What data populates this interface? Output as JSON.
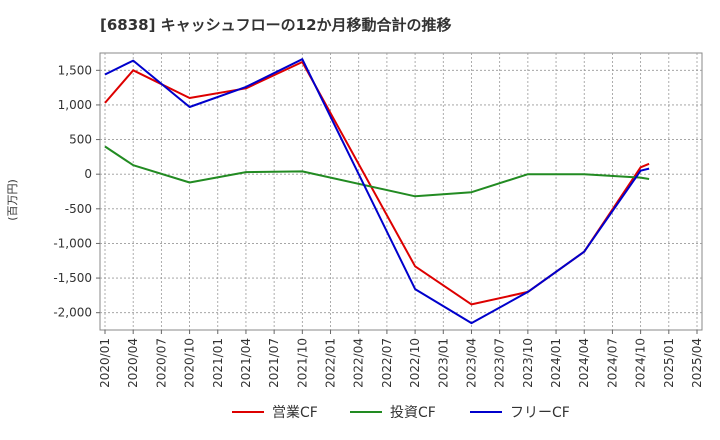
{
  "chart_data": {
    "type": "line",
    "title": "[6838]  キャッシュフローの12か月移動合計の推移",
    "ylabel": "(百万円)",
    "xlabel": "",
    "x": [
      "2020/01",
      "2020/04",
      "2020/07",
      "2020/10",
      "2021/01",
      "2021/04",
      "2021/07",
      "2021/10",
      "2022/01",
      "2022/04",
      "2022/07",
      "2022/10",
      "2023/01",
      "2023/04",
      "2023/07",
      "2023/10",
      "2024/01",
      "2024/04",
      "2024/07",
      "2024/10",
      "2025/01",
      "2025/04"
    ],
    "ylim": [
      -2250,
      1750
    ],
    "yticks": [
      -2000,
      -1500,
      -1000,
      -500,
      0,
      500,
      1000,
      1500
    ],
    "ytick_labels": [
      "-2,000",
      "-1,500",
      "-1,000",
      "-500",
      "0",
      "500",
      "1,000",
      "1,500"
    ],
    "grid": true,
    "legend_position": "bottom",
    "series": [
      {
        "name": "営業CF",
        "color": "#dd0000",
        "values": [
          1030,
          1500,
          null,
          1100,
          null,
          1240,
          null,
          1620,
          null,
          null,
          null,
          -1330,
          null,
          -1880,
          null,
          -1700,
          null,
          -1120,
          null,
          100,
          null,
          null
        ],
        "last_x": 19.3,
        "last_y": 150
      },
      {
        "name": "投資CF",
        "color": "#228b22",
        "values": [
          400,
          130,
          null,
          -120,
          null,
          30,
          null,
          40,
          null,
          null,
          null,
          -320,
          null,
          -260,
          null,
          0,
          null,
          0,
          null,
          -50,
          null,
          null
        ],
        "last_x": 19.3,
        "last_y": -70
      },
      {
        "name": "フリーCF",
        "color": "#0000cc",
        "values": [
          1440,
          1640,
          null,
          970,
          null,
          1260,
          null,
          1660,
          null,
          null,
          null,
          -1660,
          null,
          -2150,
          null,
          -1700,
          null,
          -1120,
          null,
          50,
          null,
          null
        ],
        "last_x": 19.3,
        "last_y": 80
      }
    ]
  }
}
